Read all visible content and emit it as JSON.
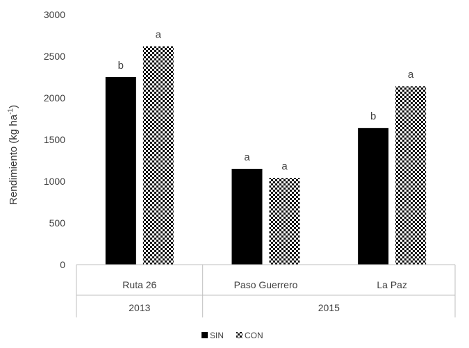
{
  "chart_data": {
    "type": "bar",
    "categories": [
      "Ruta 26",
      "Paso Guerrero",
      "La Paz"
    ],
    "groups": [
      {
        "label": "2013",
        "categories": [
          "Ruta 26"
        ]
      },
      {
        "label": "2015",
        "categories": [
          "Paso Guerrero",
          "La Paz"
        ]
      }
    ],
    "series": [
      {
        "name": "SIN",
        "values": [
          2250,
          1150,
          1640
        ],
        "labels": [
          "b",
          "a",
          "b"
        ],
        "color": "#000000",
        "pattern": "solid"
      },
      {
        "name": "CON",
        "values": [
          2620,
          1040,
          2140
        ],
        "labels": [
          "a",
          "a",
          "a"
        ],
        "color": "#000000",
        "pattern": "checker"
      }
    ],
    "ylabel": "Rendimiento (kg ha",
    "ylabel_sup": "-1",
    "ylabel_end": ")",
    "ylim": [
      0,
      3000
    ],
    "yticks": [
      0,
      500,
      1000,
      1500,
      2000,
      2500,
      3000
    ],
    "grid": false,
    "legend": "bottom"
  }
}
